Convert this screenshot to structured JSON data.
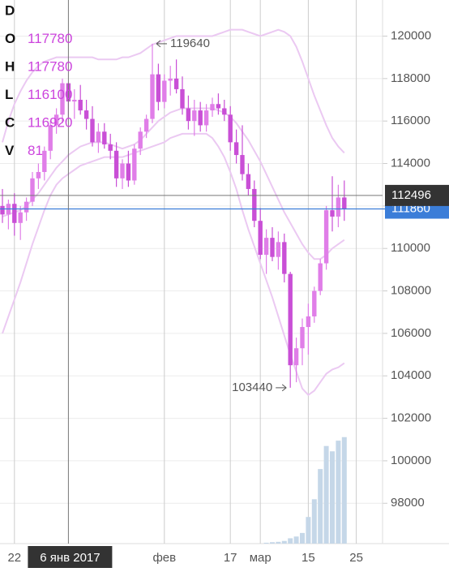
{
  "chart_data": {
    "type": "candlestick",
    "legend": [
      {
        "label": "D"
      },
      {
        "label": "O",
        "value": 117780
      },
      {
        "label": "H",
        "value": 117780
      },
      {
        "label": "L",
        "value": 116100
      },
      {
        "label": "C",
        "value": 116920
      },
      {
        "label": "V",
        "value": 81
      }
    ],
    "up_color": "#e07ee8",
    "down_color": "#c94fd6",
    "open": [
      112000,
      111600,
      112100,
      111200,
      111700,
      112200,
      113300,
      113600,
      114600,
      115800,
      116300,
      117780,
      116920,
      117000,
      116500,
      116100,
      115000,
      115500,
      114900,
      114600,
      113300,
      114000,
      113200,
      114700,
      115500,
      116100,
      118200,
      116900,
      117900,
      118000,
      117500,
      116600,
      116000,
      116500,
      115800,
      116500,
      116800,
      116600,
      116300,
      115000,
      114400,
      113500,
      112800,
      111300,
      109700,
      110500,
      109600,
      110300,
      108800,
      104500,
      105300,
      106300,
      106800,
      108000,
      109300,
      111800,
      111500,
      112400
    ],
    "high": [
      112800,
      112300,
      112600,
      112000,
      112400,
      113600,
      114000,
      114800,
      116000,
      116600,
      118000,
      117780,
      117500,
      117700,
      117000,
      116700,
      115900,
      115900,
      115400,
      115000,
      114200,
      114600,
      114900,
      115700,
      116300,
      119640,
      118700,
      118200,
      118600,
      118900,
      118100,
      117200,
      117000,
      116900,
      116800,
      117100,
      117300,
      117000,
      116700,
      115600,
      115800,
      114000,
      113200,
      111900,
      110900,
      111000,
      110800,
      110700,
      108900,
      105800,
      106700,
      107400,
      108200,
      109500,
      112000,
      113400,
      113000,
      113200
    ],
    "low": [
      111200,
      110900,
      110600,
      110400,
      111300,
      112000,
      112800,
      113200,
      114200,
      115400,
      115900,
      116100,
      116100,
      116300,
      115600,
      114800,
      114500,
      114700,
      114200,
      112900,
      112800,
      112900,
      113000,
      114400,
      115200,
      115900,
      116500,
      116600,
      117200,
      117300,
      116300,
      115600,
      115300,
      115500,
      115500,
      116200,
      116300,
      116000,
      114600,
      114000,
      113200,
      112500,
      111000,
      109500,
      108800,
      109400,
      109000,
      108400,
      103440,
      103700,
      104500,
      105000,
      106500,
      107800,
      109000,
      110800,
      111000,
      111300
    ],
    "close": [
      111600,
      112100,
      111200,
      111700,
      112200,
      113300,
      113600,
      114600,
      115800,
      116300,
      117780,
      116920,
      117000,
      116500,
      116100,
      115000,
      115500,
      114900,
      114600,
      113300,
      114000,
      113200,
      114700,
      115500,
      116100,
      118200,
      116900,
      117900,
      118000,
      117500,
      116600,
      116000,
      116500,
      115800,
      116500,
      116800,
      116600,
      116300,
      115000,
      114400,
      113500,
      112800,
      111300,
      109700,
      110500,
      109600,
      110300,
      108800,
      104500,
      105300,
      106300,
      106800,
      108000,
      109300,
      111800,
      111500,
      112400,
      111860
    ],
    "volume": [
      null,
      null,
      null,
      null,
      null,
      null,
      null,
      null,
      null,
      null,
      null,
      null,
      null,
      null,
      null,
      null,
      null,
      null,
      null,
      null,
      null,
      null,
      null,
      null,
      null,
      null,
      null,
      null,
      null,
      null,
      null,
      null,
      null,
      null,
      null,
      null,
      null,
      null,
      null,
      null,
      null,
      null,
      null,
      null,
      5,
      8,
      10,
      15,
      30,
      40,
      60,
      150,
      250,
      420,
      550,
      520,
      580,
      600
    ],
    "volume_color": "#c5d7e8",
    "volume_ylim": [
      0,
      640
    ],
    "bands": {
      "color": "#ebc9f2",
      "upper": [
        115000,
        116000,
        116800,
        117400,
        117900,
        118300,
        118600,
        118800,
        118900,
        119000,
        119000,
        119000,
        119000,
        119000,
        119000,
        119000,
        118900,
        118900,
        118900,
        118900,
        119000,
        119000,
        119100,
        119200,
        119400,
        119600,
        119700,
        119800,
        119900,
        120000,
        120000,
        120000,
        120000,
        120000,
        120000,
        120000,
        120100,
        120200,
        120300,
        120300,
        120300,
        120200,
        120100,
        120000,
        120100,
        120200,
        120300,
        120200,
        120000,
        119500,
        118800,
        118000,
        117200,
        116500,
        115800,
        115200,
        114800,
        114500
      ],
      "middle": [
        111500,
        111600,
        111700,
        111800,
        112000,
        112300,
        112600,
        113000,
        113400,
        113800,
        114100,
        114400,
        114600,
        114800,
        114900,
        115000,
        115000,
        115000,
        114900,
        114800,
        114700,
        114800,
        114900,
        115100,
        115400,
        115700,
        116000,
        116200,
        116400,
        116500,
        116600,
        116600,
        116600,
        116600,
        116600,
        116600,
        116500,
        116400,
        116200,
        115900,
        115500,
        115100,
        114600,
        114100,
        113500,
        112900,
        112300,
        111700,
        111200,
        110700,
        110200,
        109800,
        109500,
        109500,
        109700,
        110000,
        110200,
        110400
      ],
      "lower": [
        106000,
        106800,
        107600,
        108400,
        109300,
        110200,
        111000,
        111800,
        112500,
        113000,
        113300,
        113500,
        113700,
        113900,
        114000,
        114100,
        114200,
        114300,
        114300,
        114300,
        114300,
        114400,
        114500,
        114600,
        114700,
        114800,
        114900,
        115000,
        115200,
        115300,
        115400,
        115400,
        115400,
        115400,
        115400,
        115200,
        114800,
        114300,
        113600,
        112800,
        111800,
        110900,
        110100,
        109300,
        108500,
        107700,
        106800,
        105900,
        105000,
        104200,
        103400,
        103100,
        103300,
        103700,
        104100,
        104300,
        104400,
        104600
      ]
    },
    "ylim": [
      96100,
      121700
    ],
    "yticks": [
      98000,
      100000,
      102000,
      104000,
      106000,
      108000,
      110000,
      112000,
      114000,
      116000,
      118000,
      120000
    ],
    "xticks": [
      {
        "value": 2,
        "label": "22"
      },
      {
        "value": 27,
        "label": "фев"
      },
      {
        "value": 38,
        "label": "17"
      },
      {
        "value": 43,
        "label": "мар"
      },
      {
        "value": 51,
        "label": "15"
      },
      {
        "value": 59,
        "label": "25"
      }
    ],
    "grid": true,
    "last_price": 111860,
    "last_price_color": "#3b7dd8",
    "crosshair": {
      "x": 11,
      "y": 112496,
      "date_label": "6 янв 2017"
    },
    "high_annotation_index": 25,
    "low_annotation_index": 48
  }
}
